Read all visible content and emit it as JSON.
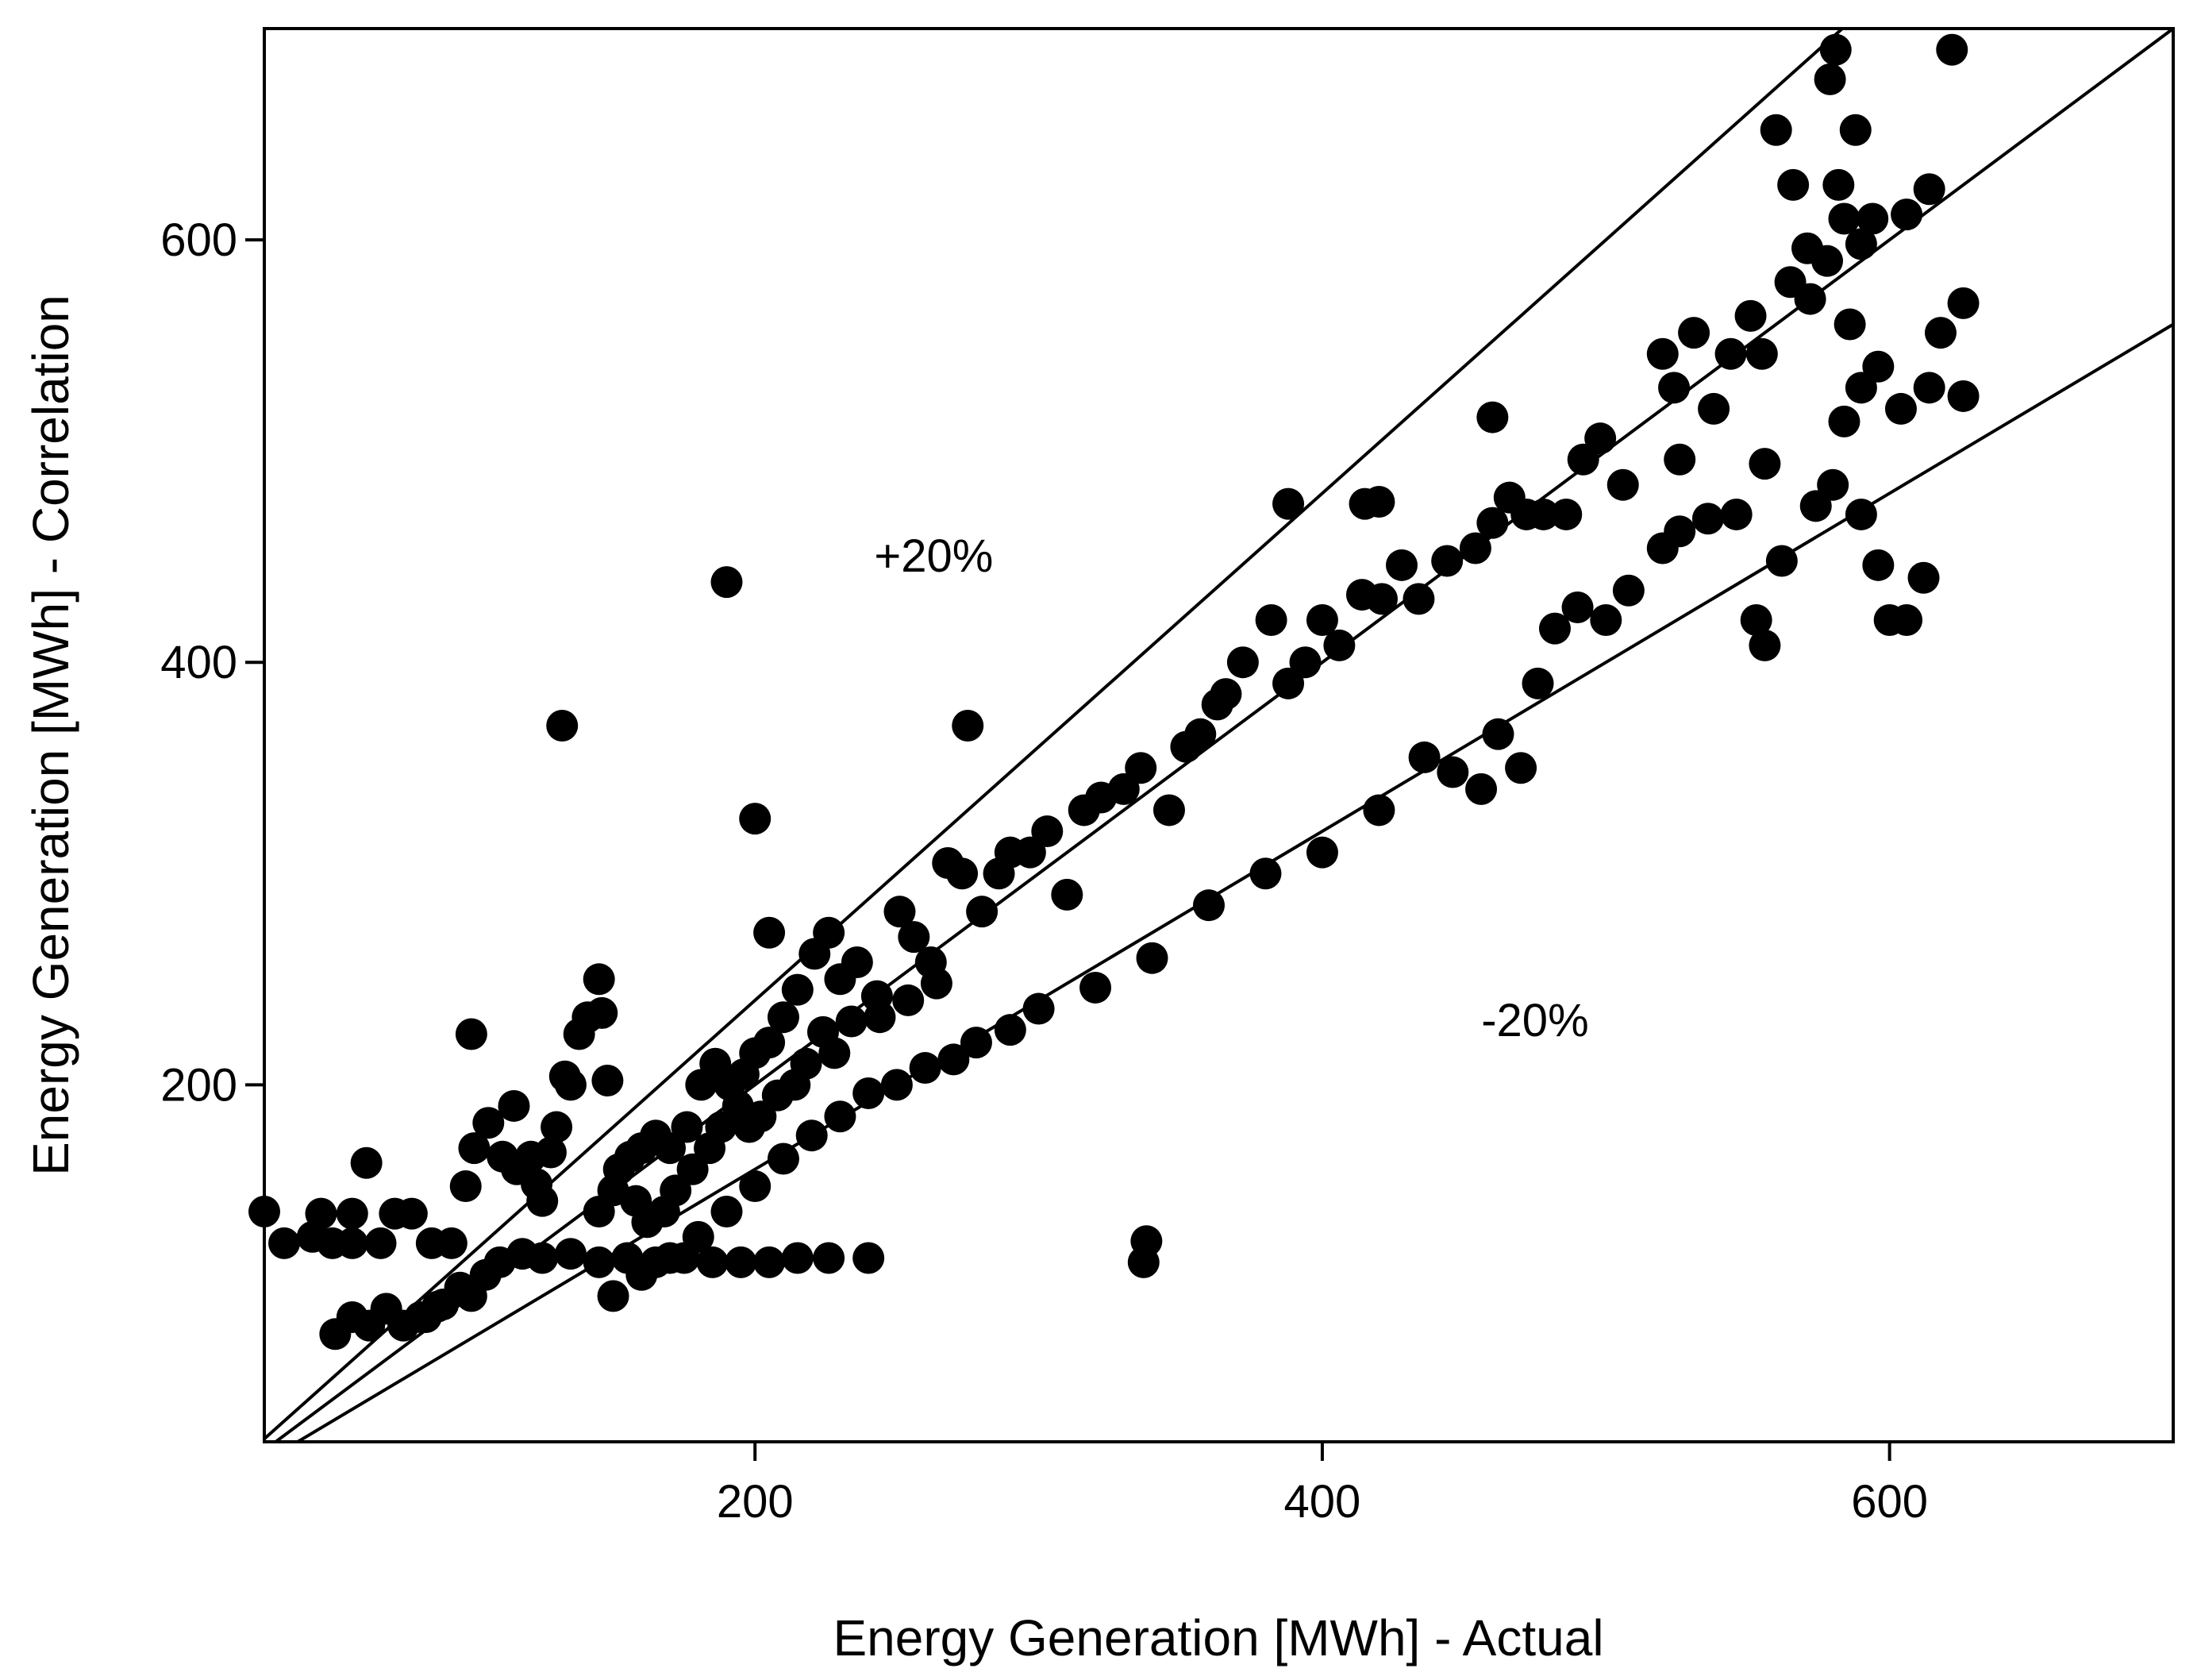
{
  "chart_data": {
    "type": "scatter",
    "title": "",
    "xlabel": "Energy Generation [MWh] - Actual",
    "ylabel": "Energy Generation [MWh] - Correlation",
    "xlim": [
      27,
      700
    ],
    "ylim": [
      31,
      700
    ],
    "xticks": [
      200,
      400,
      600
    ],
    "yticks": [
      200,
      400,
      600
    ],
    "grid": false,
    "legend": "none",
    "reference_lines": [
      {
        "name": "+20%",
        "slope": 1.2,
        "intercept": 0
      },
      {
        "name": "1:1",
        "slope": 1.0,
        "intercept": 0
      },
      {
        "name": "-20%",
        "slope": 0.8,
        "intercept": 0
      }
    ],
    "annotations": [
      {
        "text": "+20%",
        "x": 263,
        "y": 443
      },
      {
        "text": "-20%",
        "x": 475,
        "y": 223
      }
    ],
    "series": [
      {
        "name": "observations",
        "points": [
          [
            27,
            140
          ],
          [
            34,
            125
          ],
          [
            44,
            128
          ],
          [
            47,
            139
          ],
          [
            51,
            125
          ],
          [
            58,
            125
          ],
          [
            58,
            139
          ],
          [
            63,
            163
          ],
          [
            68,
            125
          ],
          [
            73,
            139
          ],
          [
            79,
            139
          ],
          [
            86,
            125
          ],
          [
            93,
            125
          ],
          [
            98,
            152
          ],
          [
            101,
            170
          ],
          [
            106,
            182
          ],
          [
            111,
            166
          ],
          [
            115,
            190
          ],
          [
            116,
            160
          ],
          [
            121,
            166
          ],
          [
            123,
            153
          ],
          [
            125,
            145
          ],
          [
            128,
            168
          ],
          [
            130,
            180
          ],
          [
            133,
            204
          ],
          [
            135,
            200
          ],
          [
            138,
            224
          ],
          [
            141,
            232
          ],
          [
            145,
            250
          ],
          [
            146,
            234
          ],
          [
            148,
            202
          ],
          [
            152,
            160
          ],
          [
            156,
            166
          ],
          [
            160,
            170
          ],
          [
            165,
            176
          ],
          [
            170,
            170
          ],
          [
            176,
            180
          ],
          [
            181,
            200
          ],
          [
            186,
            210
          ],
          [
            191,
            200
          ],
          [
            196,
            205
          ],
          [
            200,
            215
          ],
          [
            205,
            220
          ],
          [
            210,
            232
          ],
          [
            215,
            245
          ],
          [
            221,
            262
          ],
          [
            226,
            272
          ],
          [
            230,
            250
          ],
          [
            236,
            258
          ],
          [
            243,
            242
          ],
          [
            251,
            282
          ],
          [
            256,
            270
          ],
          [
            262,
            258
          ],
          [
            268,
            305
          ],
          [
            273,
            300
          ],
          [
            280,
            282
          ],
          [
            286,
            300
          ],
          [
            290,
            310
          ],
          [
            297,
            310
          ],
          [
            303,
            320
          ],
          [
            310,
            290
          ],
          [
            316,
            330
          ],
          [
            322,
            336
          ],
          [
            330,
            340
          ],
          [
            336,
            350
          ],
          [
            346,
            330
          ],
          [
            352,
            360
          ],
          [
            357,
            366
          ],
          [
            363,
            380
          ],
          [
            366,
            385
          ],
          [
            372,
            400
          ],
          [
            382,
            420
          ],
          [
            388,
            390
          ],
          [
            394,
            400
          ],
          [
            400,
            420
          ],
          [
            406,
            408
          ],
          [
            414,
            432
          ],
          [
            421,
            430
          ],
          [
            428,
            446
          ],
          [
            434,
            430
          ],
          [
            444,
            448
          ],
          [
            454,
            454
          ],
          [
            460,
            466
          ],
          [
            466,
            478
          ],
          [
            472,
            470
          ],
          [
            478,
            470
          ],
          [
            486,
            470
          ],
          [
            492,
            496
          ],
          [
            498,
            506
          ],
          [
            506,
            484
          ],
          [
            520,
            546
          ],
          [
            524,
            530
          ],
          [
            531,
            556
          ],
          [
            538,
            520
          ],
          [
            544,
            546
          ],
          [
            551,
            564
          ],
          [
            555,
            546
          ],
          [
            565,
            580
          ],
          [
            571,
            596
          ],
          [
            578,
            590
          ],
          [
            584,
            610
          ],
          [
            590,
            598
          ],
          [
            594,
            610
          ],
          [
            606,
            612
          ],
          [
            614,
            624
          ],
          [
            579,
            676
          ],
          [
            581,
            690
          ],
          [
            622,
            690
          ],
          [
            560,
            652
          ],
          [
            566,
            626
          ],
          [
            582,
            626
          ],
          [
            588,
            652
          ],
          [
            84,
            90
          ],
          [
            90,
            96
          ],
          [
            96,
            104
          ],
          [
            100,
            100
          ],
          [
            105,
            110
          ],
          [
            110,
            116
          ],
          [
            118,
            120
          ],
          [
            125,
            118
          ],
          [
            135,
            120
          ],
          [
            145,
            116
          ],
          [
            155,
            118
          ],
          [
            165,
            116
          ],
          [
            175,
            118
          ],
          [
            185,
            116
          ],
          [
            195,
            116
          ],
          [
            205,
            116
          ],
          [
            215,
            118
          ],
          [
            226,
            118
          ],
          [
            240,
            118
          ],
          [
            337,
            116
          ],
          [
            52,
            82
          ],
          [
            58,
            90
          ],
          [
            64,
            86
          ],
          [
            70,
            94
          ],
          [
            76,
            86
          ],
          [
            82,
            90
          ],
          [
            88,
            95
          ],
          [
            150,
            100
          ],
          [
            160,
            110
          ],
          [
            170,
            118
          ],
          [
            180,
            128
          ],
          [
            190,
            140
          ],
          [
            200,
            152
          ],
          [
            210,
            165
          ],
          [
            220,
            176
          ],
          [
            230,
            185
          ],
          [
            240,
            196
          ],
          [
            250,
            200
          ],
          [
            260,
            208
          ],
          [
            270,
            212
          ],
          [
            278,
            220
          ],
          [
            290,
            226
          ],
          [
            300,
            236
          ],
          [
            320,
            246
          ],
          [
            340,
            260
          ],
          [
            360,
            285
          ],
          [
            380,
            300
          ],
          [
            400,
            310
          ],
          [
            420,
            330
          ],
          [
            436,
            355
          ],
          [
            446,
            348
          ],
          [
            456,
            340
          ],
          [
            462,
            366
          ],
          [
            470,
            350
          ],
          [
            476,
            390
          ],
          [
            482,
            416
          ],
          [
            490,
            426
          ],
          [
            500,
            420
          ],
          [
            508,
            434
          ],
          [
            520,
            454
          ],
          [
            526,
            462
          ],
          [
            536,
            468
          ],
          [
            546,
            470
          ],
          [
            553,
            420
          ],
          [
            556,
            408
          ],
          [
            562,
            448
          ],
          [
            574,
            474
          ],
          [
            580,
            484
          ],
          [
            590,
            470
          ],
          [
            596,
            446
          ],
          [
            600,
            420
          ],
          [
            606,
            420
          ],
          [
            612,
            440
          ],
          [
            614,
            530
          ],
          [
            618,
            556
          ],
          [
            626,
            570
          ],
          [
            626,
            526
          ],
          [
            604,
            520
          ],
          [
            596,
            540
          ],
          [
            590,
            530
          ],
          [
            584,
            514
          ],
          [
            572,
            572
          ],
          [
            586,
            560
          ],
          [
            556,
            494
          ],
          [
            526,
            496
          ],
          [
            460,
            516
          ],
          [
            420,
            476
          ],
          [
            132,
            370
          ],
          [
            190,
            438
          ],
          [
            200,
            326
          ],
          [
            205,
            272
          ],
          [
            275,
            370
          ],
          [
            338,
            126
          ],
          [
            388,
            475
          ],
          [
            415,
            475
          ],
          [
            100,
            224
          ],
          [
            145,
            140
          ],
          [
            150,
            150
          ],
          [
            158,
            145
          ],
          [
            162,
            135
          ],
          [
            168,
            140
          ],
          [
            172,
            150
          ],
          [
            178,
            160
          ],
          [
            184,
            170
          ],
          [
            188,
            180
          ],
          [
            194,
            190
          ],
          [
            198,
            180
          ],
          [
            202,
            185
          ],
          [
            208,
            195
          ],
          [
            214,
            200
          ],
          [
            218,
            210
          ],
          [
            224,
            225
          ],
          [
            228,
            215
          ],
          [
            234,
            230
          ],
          [
            244,
            232
          ],
          [
            254,
            240
          ],
          [
            264,
            248
          ]
        ]
      }
    ]
  }
}
